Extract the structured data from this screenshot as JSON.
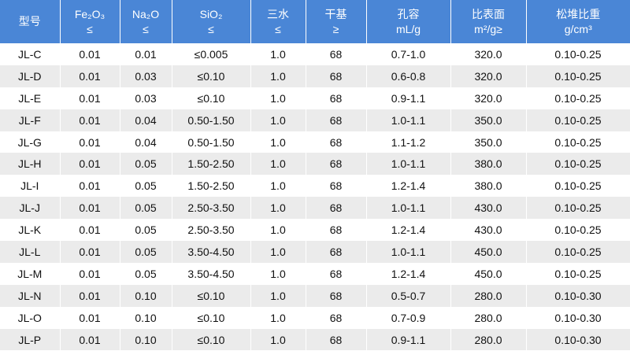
{
  "table": {
    "header": [
      [
        "型号"
      ],
      [
        "Fe₂O₃",
        "≤"
      ],
      [
        "Na₂O",
        "≤"
      ],
      [
        "SiO₂",
        "≤"
      ],
      [
        "三水",
        "≤"
      ],
      [
        "干基",
        "≥"
      ],
      [
        "孔容",
        "mL/g"
      ],
      [
        "比表面",
        "m²/g≥"
      ],
      [
        "松堆比重",
        "g/cm³"
      ]
    ],
    "rows": [
      [
        "JL-C",
        "0.01",
        "0.01",
        "≤0.005",
        "1.0",
        "68",
        "0.7-1.0",
        "320.0",
        "0.10-0.25"
      ],
      [
        "JL-D",
        "0.01",
        "0.03",
        "≤0.10",
        "1.0",
        "68",
        "0.6-0.8",
        "320.0",
        "0.10-0.25"
      ],
      [
        "JL-E",
        "0.01",
        "0.03",
        "≤0.10",
        "1.0",
        "68",
        "0.9-1.1",
        "320.0",
        "0.10-0.25"
      ],
      [
        "JL-F",
        "0.01",
        "0.04",
        "0.50-1.50",
        "1.0",
        "68",
        "1.0-1.1",
        "350.0",
        "0.10-0.25"
      ],
      [
        "JL-G",
        "0.01",
        "0.04",
        "0.50-1.50",
        "1.0",
        "68",
        "1.1-1.2",
        "350.0",
        "0.10-0.25"
      ],
      [
        "JL-H",
        "0.01",
        "0.05",
        "1.50-2.50",
        "1.0",
        "68",
        "1.0-1.1",
        "380.0",
        "0.10-0.25"
      ],
      [
        "JL-I",
        "0.01",
        "0.05",
        "1.50-2.50",
        "1.0",
        "68",
        "1.2-1.4",
        "380.0",
        "0.10-0.25"
      ],
      [
        "JL-J",
        "0.01",
        "0.05",
        "2.50-3.50",
        "1.0",
        "68",
        "1.0-1.1",
        "430.0",
        "0.10-0.25"
      ],
      [
        "JL-K",
        "0.01",
        "0.05",
        "2.50-3.50",
        "1.0",
        "68",
        "1.2-1.4",
        "430.0",
        "0.10-0.25"
      ],
      [
        "JL-L",
        "0.01",
        "0.05",
        "3.50-4.50",
        "1.0",
        "68",
        "1.0-1.1",
        "450.0",
        "0.10-0.25"
      ],
      [
        "JL-M",
        "0.01",
        "0.05",
        "3.50-4.50",
        "1.0",
        "68",
        "1.2-1.4",
        "450.0",
        "0.10-0.25"
      ],
      [
        "JL-N",
        "0.01",
        "0.10",
        "≤0.10",
        "1.0",
        "68",
        "0.5-0.7",
        "280.0",
        "0.10-0.30"
      ],
      [
        "JL-O",
        "0.01",
        "0.10",
        "≤0.10",
        "1.0",
        "68",
        "0.7-0.9",
        "280.0",
        "0.10-0.30"
      ],
      [
        "JL-P",
        "0.01",
        "0.10",
        "≤0.10",
        "1.0",
        "68",
        "0.9-1.1",
        "280.0",
        "0.10-0.30"
      ]
    ]
  }
}
